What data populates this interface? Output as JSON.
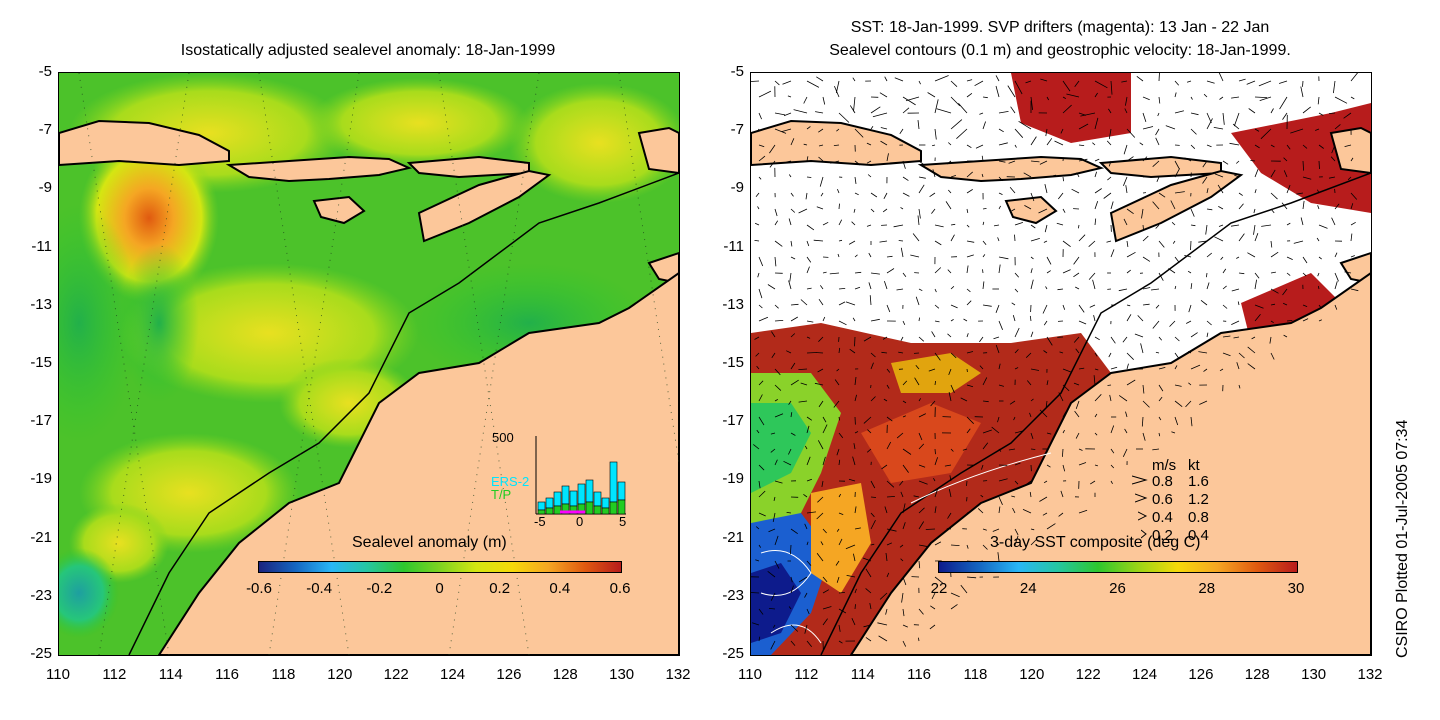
{
  "left_map": {
    "title": "Isostatically adjusted sealevel anomaly: 18-Jan-1999",
    "colorbar": {
      "label": "Sealevel anomaly (m)",
      "ticks": [
        "-0.6",
        "-0.4",
        "-0.2",
        "0",
        "0.2",
        "0.4",
        "0.6"
      ],
      "colors": [
        "#1a237e",
        "#1565c0",
        "#29b6f6",
        "#26c6a0",
        "#2ec72e",
        "#7ed321",
        "#d4e612",
        "#f5d90a",
        "#f5a623",
        "#e05a10",
        "#b71c1c"
      ]
    },
    "inset": {
      "ytick": "500",
      "legend": [
        "ERS-2",
        "T/P"
      ],
      "xticks": [
        "-5",
        "0",
        "5"
      ],
      "colors": {
        "ERS-2": "#00e5ff",
        "T/P": "#22cc22"
      }
    }
  },
  "right_map": {
    "title_line1": "SST: 18-Jan-1999. SVP drifters (magenta): 13 Jan - 22 Jan",
    "title_line2": "Sealevel contours (0.1 m) and geostrophic velocity: 18-Jan-1999.",
    "colorbar": {
      "label": "3-day SST composite (deg C)",
      "ticks": [
        "22",
        "24",
        "26",
        "28",
        "30"
      ],
      "colors": [
        "#0d1b8c",
        "#1565c0",
        "#29b6f6",
        "#26c6a0",
        "#2ec72e",
        "#9ad417",
        "#f5d90a",
        "#f5a623",
        "#e05a10",
        "#b71c1c"
      ]
    },
    "velocity_legend": {
      "header": [
        "m/s",
        "kt"
      ],
      "rows": [
        [
          "0.8",
          "1.6"
        ],
        [
          "0.6",
          "1.2"
        ],
        [
          "0.4",
          "0.8"
        ],
        [
          "0.2",
          "0.4"
        ]
      ]
    }
  },
  "axes": {
    "y_ticks": [
      "-5",
      "-7",
      "-9",
      "-11",
      "-13",
      "-15",
      "-17",
      "-19",
      "-21",
      "-23",
      "-25"
    ],
    "x_ticks": [
      "110",
      "112",
      "114",
      "116",
      "118",
      "120",
      "122",
      "124",
      "126",
      "128",
      "130",
      "132"
    ]
  },
  "colors": {
    "land": "#fcc79a",
    "ocean_base": "#4cc22a",
    "coast": "#000000"
  },
  "credit": "CSIRO Plotted 01-Jul-2005 07:34"
}
